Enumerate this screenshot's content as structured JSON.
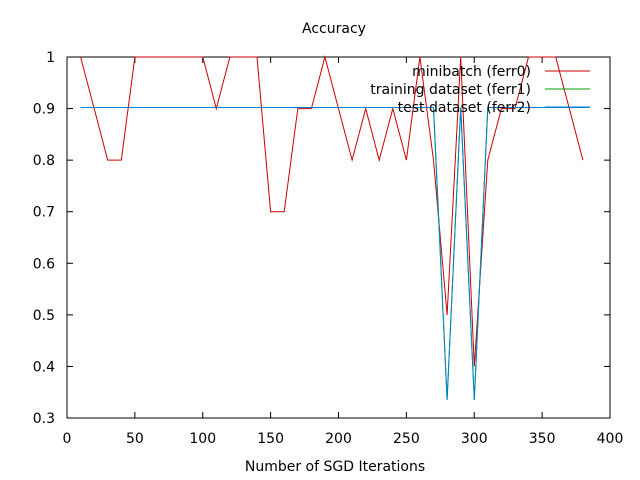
{
  "colors": {
    "minibatch": "#cc0000",
    "training": "#00a000",
    "test": "#0080d0"
  },
  "chart_data": {
    "type": "line",
    "title": "Accuracy",
    "xlabel": "Number of SGD Iterations",
    "ylabel": "",
    "xlim": [
      0,
      400
    ],
    "ylim": [
      0.3,
      1.0
    ],
    "xticks": [
      0,
      50,
      100,
      150,
      200,
      250,
      300,
      350,
      400
    ],
    "yticks": [
      0.3,
      0.4,
      0.5,
      0.6,
      0.7,
      0.8,
      0.9,
      1.0
    ],
    "grid": false,
    "legend_position": "top-right",
    "series": [
      {
        "name": "minibatch (ferr0)",
        "color": "#cc0000",
        "x": [
          10,
          20,
          30,
          40,
          50,
          60,
          70,
          80,
          90,
          100,
          110,
          120,
          130,
          140,
          150,
          160,
          170,
          180,
          190,
          200,
          210,
          220,
          230,
          240,
          250,
          260,
          270,
          280,
          290,
          300,
          310,
          320,
          330,
          340,
          350,
          360,
          370,
          380
        ],
        "y": [
          1.0,
          0.9,
          0.8,
          0.8,
          1.0,
          1.0,
          1.0,
          1.0,
          1.0,
          1.0,
          0.9,
          1.0,
          1.0,
          1.0,
          0.7,
          0.7,
          0.9,
          0.9,
          1.0,
          0.9,
          0.8,
          0.9,
          0.8,
          0.9,
          0.8,
          1.0,
          0.8,
          0.5,
          1.0,
          0.4,
          0.8,
          0.9,
          0.9,
          1.0,
          1.0,
          1.0,
          0.9,
          0.8
        ]
      },
      {
        "name": "training dataset (ferr1)",
        "color": "#00a000",
        "x": [
          10,
          20,
          30,
          40,
          50,
          60,
          70,
          80,
          90,
          100,
          110,
          120,
          130,
          140,
          150,
          160,
          170,
          180,
          190,
          200,
          210,
          220,
          230,
          240,
          250,
          260,
          270,
          280,
          290,
          300,
          310,
          320,
          330,
          340,
          350,
          360,
          370,
          380,
          385
        ],
        "y": [
          0.902,
          0.902,
          0.902,
          0.902,
          0.902,
          0.902,
          0.902,
          0.902,
          0.902,
          0.902,
          0.902,
          0.902,
          0.902,
          0.902,
          0.902,
          0.902,
          0.902,
          0.902,
          0.902,
          0.902,
          0.902,
          0.902,
          0.902,
          0.902,
          0.902,
          0.902,
          0.902,
          0.335,
          0.902,
          0.335,
          0.902,
          0.902,
          0.902,
          0.902,
          0.902,
          0.902,
          0.902,
          0.902,
          0.902
        ]
      },
      {
        "name": "test dataset (ferr2)",
        "color": "#0080d0",
        "x": [
          10,
          20,
          30,
          40,
          50,
          60,
          70,
          80,
          90,
          100,
          110,
          120,
          130,
          140,
          150,
          160,
          170,
          180,
          190,
          200,
          210,
          220,
          230,
          240,
          250,
          260,
          270,
          280,
          290,
          300,
          310,
          320,
          330,
          340,
          350,
          360,
          370,
          380,
          385
        ],
        "y": [
          0.902,
          0.902,
          0.902,
          0.902,
          0.902,
          0.902,
          0.902,
          0.902,
          0.902,
          0.902,
          0.902,
          0.902,
          0.902,
          0.902,
          0.902,
          0.902,
          0.902,
          0.902,
          0.902,
          0.902,
          0.902,
          0.902,
          0.902,
          0.902,
          0.902,
          0.902,
          0.902,
          0.335,
          0.902,
          0.335,
          0.902,
          0.902,
          0.902,
          0.902,
          0.902,
          0.902,
          0.902,
          0.902,
          0.902
        ]
      }
    ]
  }
}
